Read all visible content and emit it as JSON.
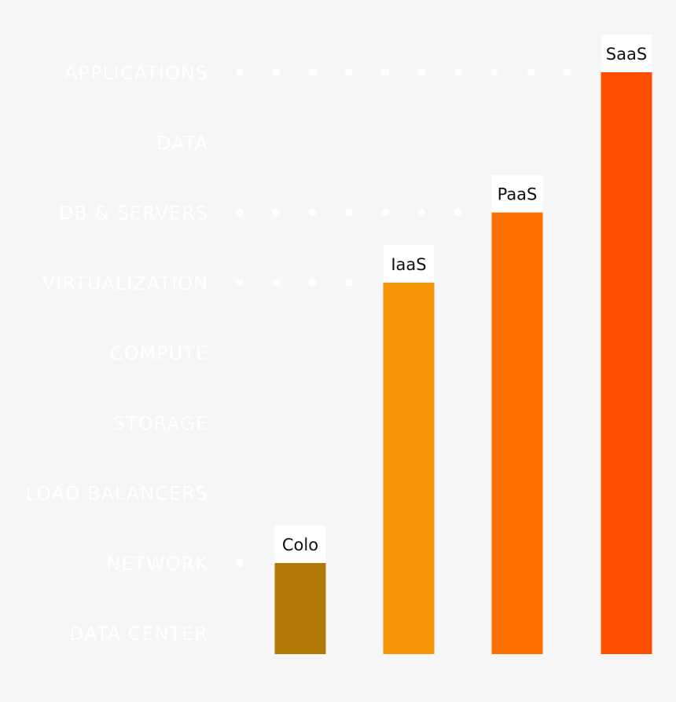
{
  "chart_data": {
    "type": "bar",
    "title": "",
    "xlabel": "",
    "ylabel": "",
    "y_categories": [
      "DATA CENTER",
      "NETWORK",
      "LOAD BALANCERS",
      "STORAGE",
      "COMPUTE",
      "VIRTUALIZATION",
      "DB & SERVERS",
      "DATA",
      "APPLICATIONS"
    ],
    "categories": [
      "Colo",
      "IaaS",
      "PaaS",
      "SaaS"
    ],
    "values": [
      2,
      6,
      7,
      9
    ],
    "ylim": [
      0.7,
      9
    ],
    "grid": false,
    "colors": [
      "#b27805",
      "#f59505",
      "#fd7000",
      "#fd4e00"
    ]
  }
}
